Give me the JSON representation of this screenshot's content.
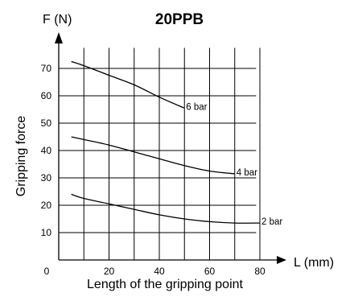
{
  "chart_data": {
    "type": "line",
    "title": "20PPB",
    "y_axis_unit_label": "F (N)",
    "x_axis_unit_label": "L (mm)",
    "xlabel": "Length of the gripping point",
    "ylabel": "Gripping force",
    "x_ticks": [
      "0",
      "20",
      "40",
      "60",
      "80"
    ],
    "y_ticks": [
      "10",
      "20",
      "30",
      "40",
      "50",
      "60",
      "70"
    ],
    "xlim": [
      0,
      85
    ],
    "ylim": [
      0,
      80
    ],
    "grid": true,
    "series": [
      {
        "name": "6 bar",
        "x": [
          5,
          10,
          20,
          30,
          40,
          50
        ],
        "y": [
          72.5,
          71,
          67.5,
          64,
          59.5,
          55.5
        ]
      },
      {
        "name": "4 bar",
        "x": [
          5,
          10,
          20,
          30,
          40,
          50,
          60,
          70
        ],
        "y": [
          45,
          44,
          42,
          39.5,
          37,
          34.5,
          32.5,
          31.5
        ]
      },
      {
        "name": "2 bar",
        "x": [
          5,
          10,
          20,
          30,
          40,
          50,
          60,
          70,
          80
        ],
        "y": [
          24,
          22.5,
          20.5,
          18.5,
          16.5,
          15,
          14,
          13.5,
          13.5
        ]
      }
    ]
  }
}
